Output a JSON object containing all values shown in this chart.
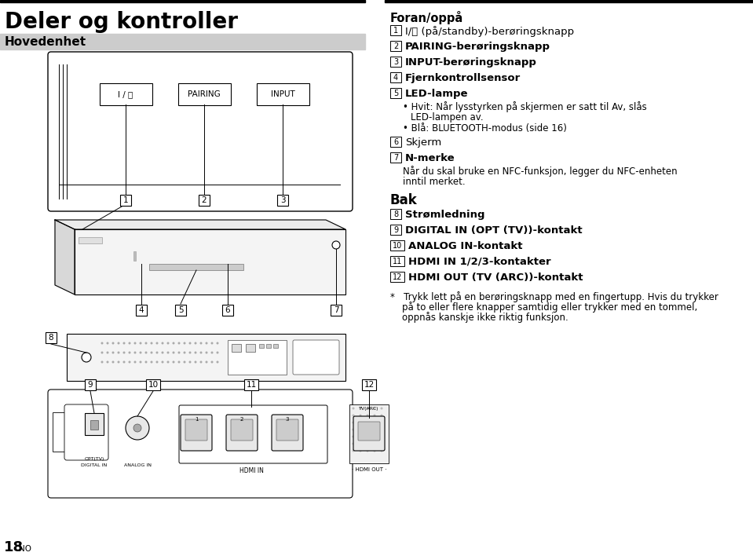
{
  "title": "Deler og kontroller",
  "subtitle": "Hovedenhet",
  "bg_color": "#ffffff",
  "subtitle_bg": "#cccccc",
  "foran_header": "Foran/oppå",
  "bak_header": "Bak",
  "item1_normal": "I/⏻ (på/standby)-berøringsknapp",
  "item2_bold": "PAIRING-berøringsknapp",
  "item3_bold": "INPUT-berøringsknapp",
  "item4_bold": "Fjernkontrollsensor",
  "item5_bold": "LED-lampe",
  "bullet1": "• Hvit: Når lysstyrken på skjermen er satt til Av, slås",
  "bullet1b": "    LED-lampen av.",
  "bullet2": "• Blå: BLUETOOTH-modus (side 16)",
  "item6_normal": "Skjerm",
  "item7_bold": "N-merke",
  "item7_desc1": "Når du skal bruke en NFC-funksjon, legger du NFC-enheten",
  "item7_desc2": "inntil merket.",
  "item8_bold": "Strømledning",
  "item9_bold": "DIGITAL IN (OPT (TV))-kontakt",
  "item10_bold": "ANALOG IN-kontakt",
  "item11_bold": "HDMI IN 1/2/3-kontakter",
  "item12_bold": "HDMI OUT (TV (ARC))-kontakt",
  "footnote1": "*   Trykk lett på en berøringsknapp med en fingertupp. Hvis du trykker",
  "footnote2": "    på to eller flere knapper samtidig eller trykker med en tommel,",
  "footnote3": "    oppnås kanskje ikke riktig funksjon.",
  "page_num": "18",
  "page_suffix": "NO"
}
